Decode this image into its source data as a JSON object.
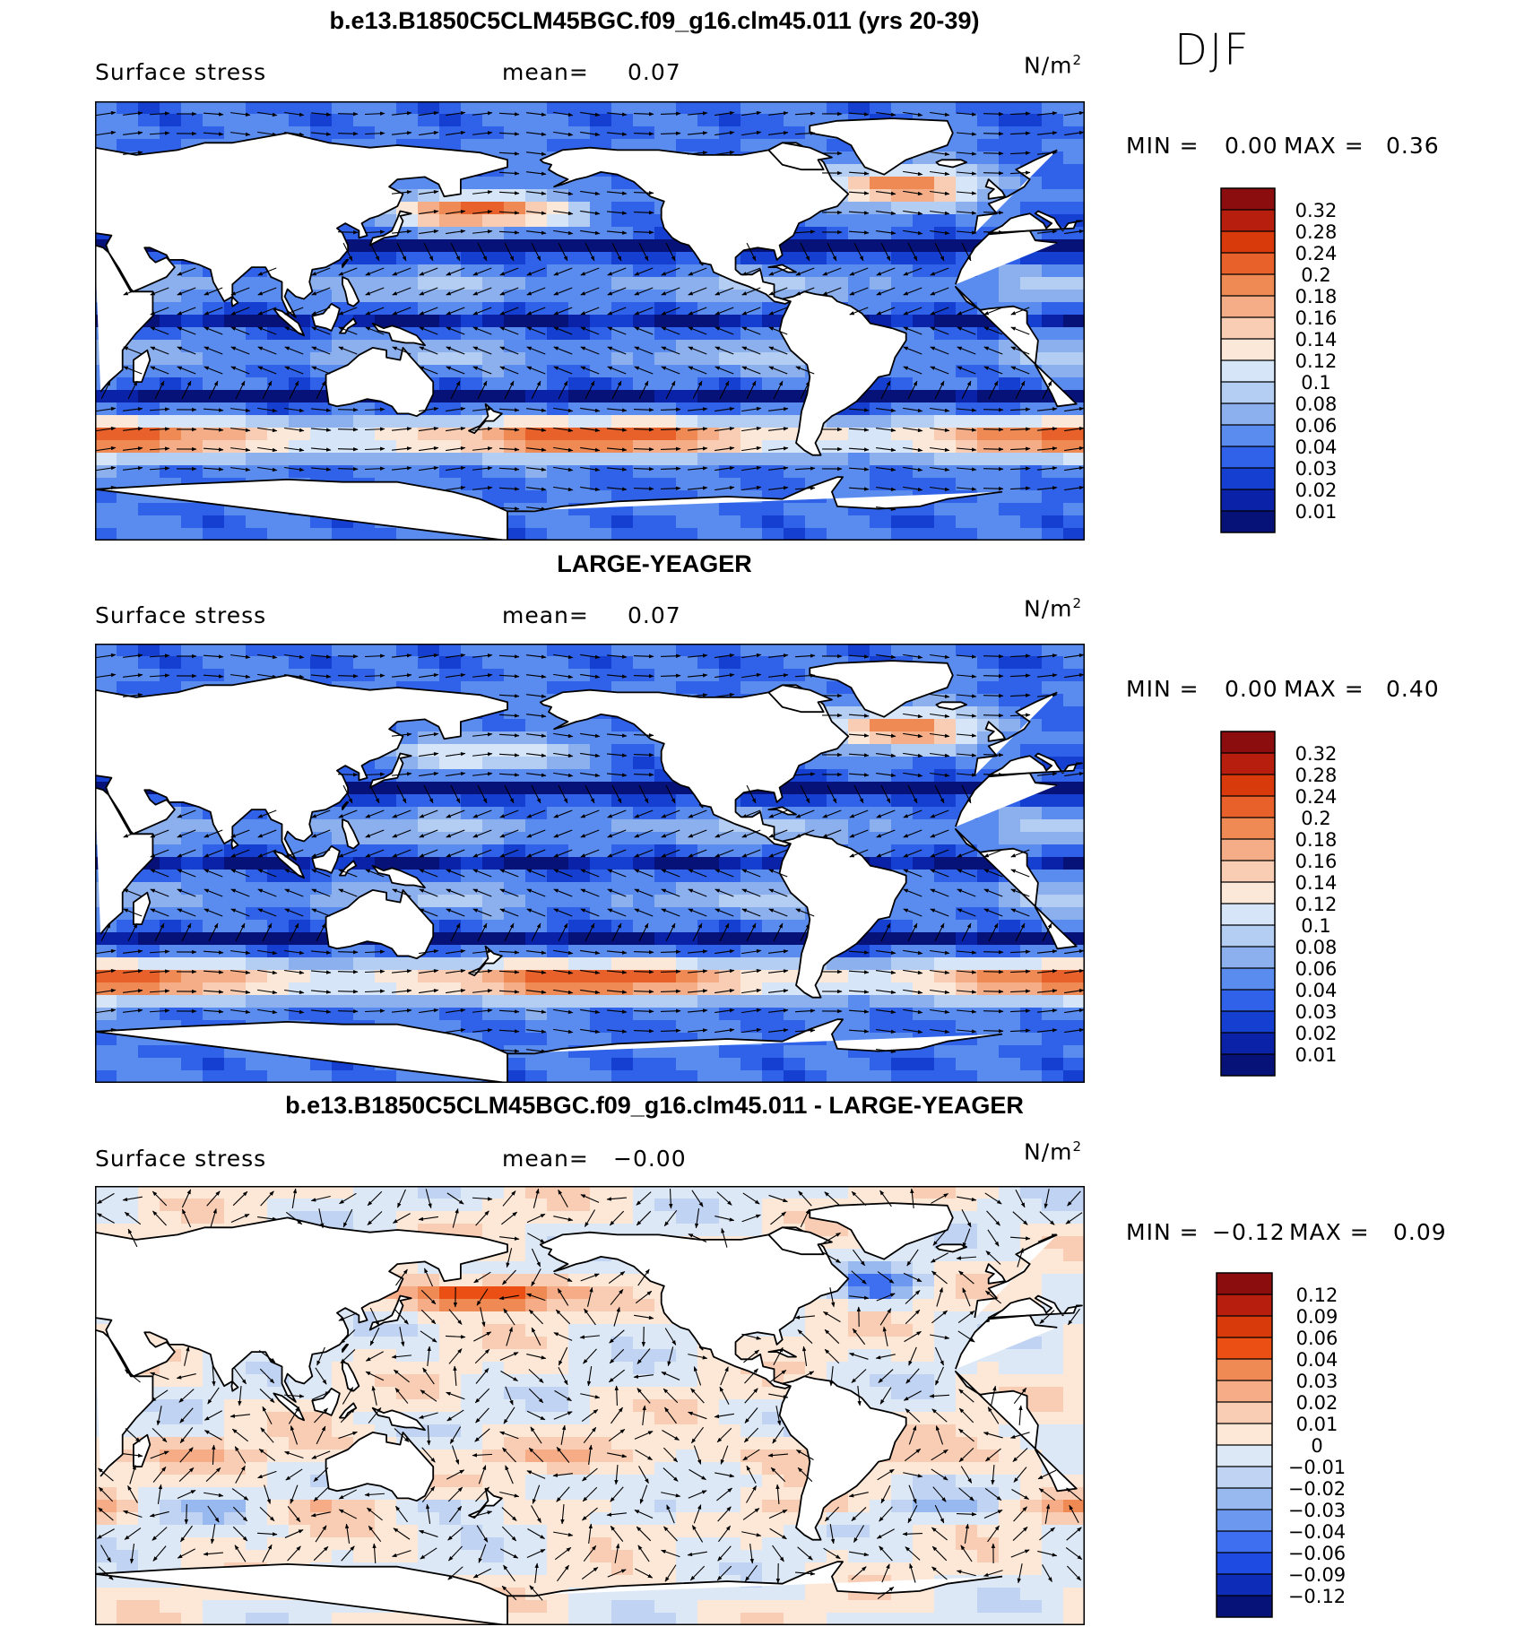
{
  "season": "DJF",
  "panels": [
    {
      "title": "b.e13.B1850C5CLM45BGC.f09_g16.clm45.011 (yrs 20-39)",
      "variable": "Surface stress",
      "mean_label": "mean=",
      "mean_value": "0.07",
      "units": "N/m",
      "units_sup": "2",
      "min_label": "MIN =",
      "min_value": "0.00",
      "max_label": "MAX =",
      "max_value": "0.36",
      "colorbar_ticks": [
        "0.32",
        "0.28",
        "0.24",
        "0.2",
        "0.18",
        "0.16",
        "0.14",
        "0.12",
        "0.1",
        "0.08",
        "0.06",
        "0.04",
        "0.03",
        "0.02",
        "0.01"
      ]
    },
    {
      "title": "LARGE-YEAGER",
      "variable": "Surface stress",
      "mean_label": "mean=",
      "mean_value": "0.07",
      "units": "N/m",
      "units_sup": "2",
      "min_label": "MIN =",
      "min_value": "0.00",
      "max_label": "MAX =",
      "max_value": "0.40",
      "colorbar_ticks": [
        "0.32",
        "0.28",
        "0.24",
        "0.2",
        "0.18",
        "0.16",
        "0.14",
        "0.12",
        "0.1",
        "0.08",
        "0.06",
        "0.04",
        "0.03",
        "0.02",
        "0.01"
      ]
    },
    {
      "title": "b.e13.B1850C5CLM45BGC.f09_g16.clm45.011 - LARGE-YEAGER",
      "variable": "Surface stress",
      "mean_label": "mean=",
      "mean_value": "−0.00",
      "units": "N/m",
      "units_sup": "2",
      "min_label": "MIN =",
      "min_value": "−0.12",
      "max_label": "MAX =",
      "max_value": "0.09",
      "colorbar_ticks": [
        "0.12",
        "0.09",
        "0.06",
        "0.04",
        "0.03",
        "0.02",
        "0.01",
        "0",
        "−0.01",
        "−0.02",
        "−0.03",
        "−0.04",
        "−0.06",
        "−0.09",
        "−0.12"
      ]
    }
  ],
  "colors": {
    "abs_scale": [
      "#8b0d0d",
      "#b81e0e",
      "#d83a0c",
      "#e8612a",
      "#f08a55",
      "#f4ad86",
      "#f8cdb3",
      "#fbe8d9",
      "#d6e6f8",
      "#b3cdf3",
      "#8cb0ee",
      "#5a8cf0",
      "#2f62e8",
      "#143fd0",
      "#0a22a8",
      "#061278"
    ],
    "diff_scale": [
      "#8b0d0d",
      "#b81e0e",
      "#d83a0c",
      "#ec4f14",
      "#f08a55",
      "#f6ad87",
      "#f8cdb3",
      "#fde8d8",
      "#dde8f6",
      "#c0d3f3",
      "#98b8f0",
      "#6c98ef",
      "#3e6ff0",
      "#1e4be2",
      "#0d2cb8",
      "#061278"
    ]
  },
  "chart_data": [
    {
      "type": "heatmap",
      "title": "b.e13.B1850C5CLM45BGC.f09_g16.clm45.011 (yrs 20-39)",
      "variable": "Surface stress",
      "units": "N/m2",
      "mean": 0.07,
      "min": 0.0,
      "max": 0.36,
      "levels": [
        0.01,
        0.02,
        0.03,
        0.04,
        0.06,
        0.08,
        0.1,
        0.12,
        0.14,
        0.16,
        0.18,
        0.2,
        0.24,
        0.28,
        0.32
      ],
      "overlay": "wind stress vectors",
      "projection": "global cylindrical equidistant, Pacific-centered"
    },
    {
      "type": "heatmap",
      "title": "LARGE-YEAGER",
      "variable": "Surface stress",
      "units": "N/m2",
      "mean": 0.07,
      "min": 0.0,
      "max": 0.4,
      "levels": [
        0.01,
        0.02,
        0.03,
        0.04,
        0.06,
        0.08,
        0.1,
        0.12,
        0.14,
        0.16,
        0.18,
        0.2,
        0.24,
        0.28,
        0.32
      ],
      "overlay": "wind stress vectors",
      "projection": "global cylindrical equidistant, Pacific-centered"
    },
    {
      "type": "heatmap",
      "title": "b.e13.B1850C5CLM45BGC.f09_g16.clm45.011 - LARGE-YEAGER",
      "variable": "Surface stress",
      "units": "N/m2",
      "mean": -0.0,
      "min": -0.12,
      "max": 0.09,
      "levels": [
        -0.12,
        -0.09,
        -0.06,
        -0.04,
        -0.03,
        -0.02,
        -0.01,
        0,
        0.01,
        0.02,
        0.03,
        0.04,
        0.06,
        0.09,
        0.12
      ],
      "overlay": "wind stress difference vectors",
      "projection": "global cylindrical equidistant, Pacific-centered"
    }
  ]
}
